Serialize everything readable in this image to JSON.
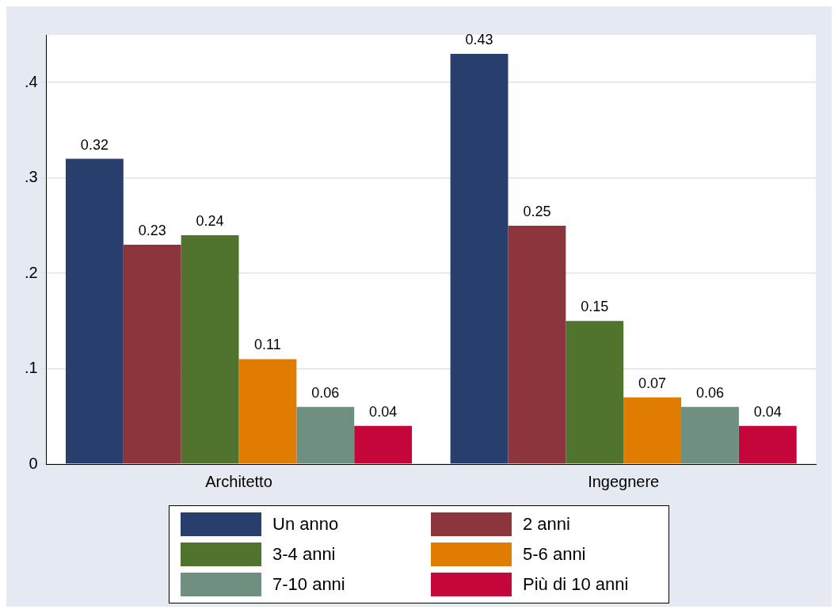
{
  "chart_data": {
    "type": "bar",
    "categories": [
      "Architetto",
      "Ingegnere"
    ],
    "series": [
      {
        "name": "Un anno",
        "color": "#283f6e",
        "values": [
          0.32,
          0.43
        ]
      },
      {
        "name": "2 anni",
        "color": "#8c353c",
        "values": [
          0.23,
          0.25
        ]
      },
      {
        "name": "3-4 anni",
        "color": "#50742e",
        "values": [
          0.24,
          0.15
        ]
      },
      {
        "name": "5-6 anni",
        "color": "#e07d00",
        "values": [
          0.11,
          0.07
        ]
      },
      {
        "name": "7-10 anni",
        "color": "#6f9080",
        "values": [
          0.06,
          0.06
        ]
      },
      {
        "name": "Più di 10 anni",
        "color": "#c4063a",
        "values": [
          0.04,
          0.04
        ]
      }
    ],
    "ylim": [
      0,
      0.45
    ],
    "yticks": [
      0,
      {
        "value": 0.1,
        "label": ".1"
      },
      {
        "value": 0.2,
        "label": ".2"
      },
      {
        "value": 0.3,
        "label": ".3"
      },
      {
        "value": 0.4,
        "label": ".4"
      }
    ],
    "grid": "y",
    "legend": "bottom",
    "data_labels": true
  }
}
